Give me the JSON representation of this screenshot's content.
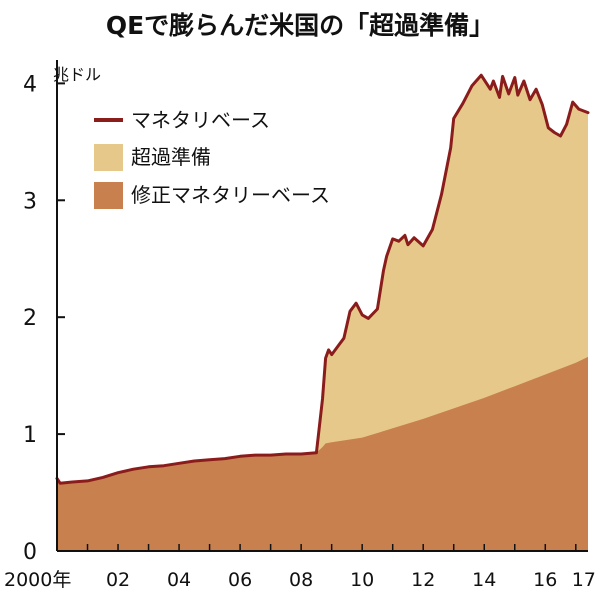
{
  "chart_data": {
    "type": "area",
    "title": "QEで膨らんだ米国の「超過準備」",
    "y_unit": "兆ドル",
    "ylim": [
      0,
      4.2
    ],
    "y_ticks": [
      {
        "value": 0,
        "label": "0"
      },
      {
        "value": 1,
        "label": "1"
      },
      {
        "value": 2,
        "label": "2"
      },
      {
        "value": 3,
        "label": "3"
      },
      {
        "value": 4,
        "label": "4"
      }
    ],
    "xlim": [
      2000.0,
      2017.4
    ],
    "x_ticks": [
      {
        "value": 2000.0,
        "label": "2000年"
      },
      {
        "value": 2002.0,
        "label": "02"
      },
      {
        "value": 2004.0,
        "label": "04"
      },
      {
        "value": 2006.0,
        "label": "06"
      },
      {
        "value": 2008.0,
        "label": "08"
      },
      {
        "value": 2010.0,
        "label": "10"
      },
      {
        "value": 2012.0,
        "label": "12"
      },
      {
        "value": 2014.0,
        "label": "14"
      },
      {
        "value": 2016.0,
        "label": "16"
      },
      {
        "value": 2017.0,
        "label": "17"
      }
    ],
    "legend": {
      "placement": "top-left",
      "entries": [
        {
          "key": "monetary_base",
          "label": "マネタリベース",
          "kind": "line"
        },
        {
          "key": "excess_reserves",
          "label": "超過準備",
          "kind": "area"
        },
        {
          "key": "adjusted_monetary_base",
          "label": "修正マネタリーベース",
          "kind": "area"
        }
      ]
    },
    "colors": {
      "monetary_base": "#8b1c1c",
      "excess_reserves": "#e6c98a",
      "adjusted_monetary_base": "#c8804f",
      "axis": "#111111"
    },
    "series": [
      {
        "key": "monetary_base",
        "name": "マネタリベース",
        "x": [
          2000.0,
          2000.1,
          2000.5,
          2001.0,
          2001.5,
          2002.0,
          2002.5,
          2003.0,
          2003.5,
          2004.0,
          2004.5,
          2005.0,
          2005.5,
          2006.0,
          2006.5,
          2007.0,
          2007.5,
          2008.0,
          2008.5,
          2008.7,
          2008.8,
          2008.9,
          2009.0,
          2009.2,
          2009.4,
          2009.6,
          2009.8,
          2010.0,
          2010.2,
          2010.5,
          2010.7,
          2010.8,
          2011.0,
          2011.2,
          2011.4,
          2011.5,
          2011.7,
          2012.0,
          2012.3,
          2012.6,
          2012.9,
          2013.0,
          2013.3,
          2013.6,
          2013.9,
          2014.2,
          2014.3,
          2014.5,
          2014.6,
          2014.8,
          2015.0,
          2015.1,
          2015.3,
          2015.5,
          2015.7,
          2015.9,
          2016.1,
          2016.3,
          2016.5,
          2016.7,
          2016.9,
          2017.1,
          2017.4
        ],
        "values": [
          0.62,
          0.58,
          0.59,
          0.6,
          0.63,
          0.67,
          0.7,
          0.72,
          0.73,
          0.75,
          0.77,
          0.78,
          0.79,
          0.81,
          0.82,
          0.82,
          0.83,
          0.83,
          0.84,
          1.3,
          1.65,
          1.72,
          1.68,
          1.75,
          1.82,
          2.05,
          2.12,
          2.02,
          1.99,
          2.07,
          2.4,
          2.52,
          2.67,
          2.65,
          2.7,
          2.62,
          2.68,
          2.61,
          2.75,
          3.05,
          3.45,
          3.7,
          3.83,
          3.98,
          4.07,
          3.95,
          4.02,
          3.88,
          4.06,
          3.91,
          4.05,
          3.9,
          4.02,
          3.86,
          3.95,
          3.82,
          3.62,
          3.58,
          3.55,
          3.65,
          3.84,
          3.78,
          3.75
        ]
      },
      {
        "key": "adjusted_monetary_base",
        "name": "修正マネタリーベース",
        "x": [
          2000.0,
          2000.1,
          2000.5,
          2001.0,
          2001.5,
          2002.0,
          2002.5,
          2003.0,
          2003.5,
          2004.0,
          2004.5,
          2005.0,
          2005.5,
          2006.0,
          2006.5,
          2007.0,
          2007.5,
          2008.0,
          2008.5,
          2008.7,
          2008.8,
          2009.0,
          2010.0,
          2011.0,
          2012.0,
          2013.0,
          2014.0,
          2015.0,
          2016.0,
          2017.0,
          2017.4
        ],
        "values": [
          0.62,
          0.58,
          0.59,
          0.6,
          0.63,
          0.67,
          0.7,
          0.72,
          0.73,
          0.75,
          0.77,
          0.78,
          0.79,
          0.81,
          0.82,
          0.82,
          0.83,
          0.83,
          0.84,
          0.89,
          0.92,
          0.93,
          0.97,
          1.05,
          1.13,
          1.22,
          1.31,
          1.41,
          1.51,
          1.61,
          1.66
        ]
      }
    ]
  }
}
